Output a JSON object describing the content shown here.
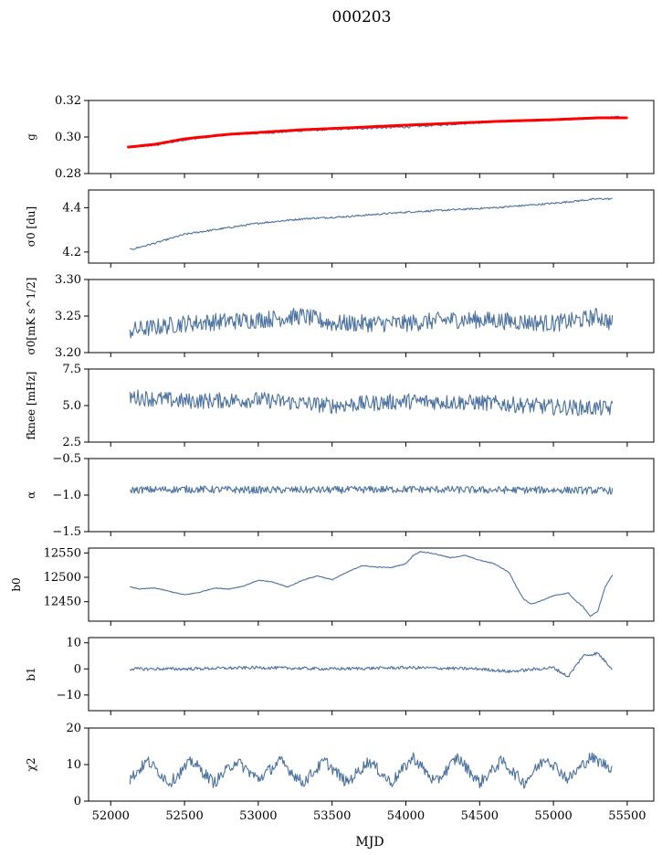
{
  "title": "000203",
  "xlabel": "MJD",
  "x_ticks": [
    52000,
    52500,
    53000,
    53500,
    54000,
    54500,
    55000,
    55500
  ],
  "chart_data": [
    {
      "type": "line",
      "ylabel": "g",
      "ylim": [
        0.28,
        0.32
      ],
      "y_ticks": [
        "0.28",
        "0.30",
        "0.32"
      ],
      "series": [
        {
          "values_x": [
            52130,
            52300,
            52500,
            52800,
            53000,
            53300,
            53600,
            54000,
            54300,
            54600,
            55000,
            55300,
            55450
          ],
          "values_y": [
            0.2945,
            0.2955,
            0.2985,
            0.3015,
            0.302,
            0.3035,
            0.3045,
            0.3055,
            0.307,
            0.3085,
            0.3095,
            0.3105,
            0.311
          ]
        },
        {
          "values_x": [
            52120,
            52300,
            52500,
            52800,
            53000,
            53300,
            53600,
            54000,
            54300,
            54600,
            55000,
            55300,
            55500
          ],
          "values_y": [
            0.2945,
            0.296,
            0.299,
            0.3015,
            0.3025,
            0.304,
            0.305,
            0.3065,
            0.3075,
            0.3085,
            0.3095,
            0.3105,
            0.3105
          ]
        }
      ]
    },
    {
      "type": "line",
      "ylabel": "σ0 [du]",
      "ylim": [
        4.15,
        4.48
      ],
      "y_ticks": [
        "4.2",
        "4.4"
      ],
      "series": [
        {
          "values_x": [
            52130,
            52300,
            52500,
            52800,
            53000,
            53300,
            53600,
            54000,
            54300,
            54600,
            55000,
            55300,
            55400
          ],
          "values_y": [
            4.21,
            4.24,
            4.28,
            4.31,
            4.33,
            4.35,
            4.36,
            4.38,
            4.39,
            4.4,
            4.42,
            4.44,
            4.44
          ]
        }
      ]
    },
    {
      "type": "line",
      "ylabel": "σ0[mK s^1/2]",
      "ylim": [
        3.2,
        3.3
      ],
      "y_ticks": [
        "3.20",
        "3.25",
        "3.30"
      ],
      "series": [
        {
          "values_x": [
            52130,
            52500,
            53000,
            53300,
            53500,
            54000,
            54300,
            54500,
            55000,
            55200,
            55300,
            55400
          ],
          "values_y": [
            3.23,
            3.24,
            3.245,
            3.25,
            3.24,
            3.24,
            3.245,
            3.245,
            3.24,
            3.245,
            3.25,
            3.24
          ]
        }
      ]
    },
    {
      "type": "line",
      "ylabel": "fknee [mHz]",
      "ylim": [
        2.5,
        7.5
      ],
      "y_ticks": [
        "2.5",
        "5.0",
        "7.5"
      ],
      "series": [
        {
          "values_x": [
            52130,
            52500,
            53000,
            53250,
            53500,
            54000,
            54500,
            55000,
            55400
          ],
          "values_y": [
            5.6,
            5.3,
            5.4,
            5.2,
            5.0,
            5.3,
            5.2,
            4.9,
            4.8
          ]
        }
      ]
    },
    {
      "type": "line",
      "ylabel": "α",
      "ylim": [
        -1.5,
        -0.5
      ],
      "y_ticks": [
        "−1.5",
        "−1.0",
        "−0.5"
      ],
      "series": [
        {
          "values_x": [
            52130,
            52500,
            53000,
            53500,
            54000,
            54500,
            55000,
            55400
          ],
          "values_y": [
            -0.93,
            -0.92,
            -0.93,
            -0.93,
            -0.92,
            -0.93,
            -0.93,
            -0.94
          ]
        }
      ]
    },
    {
      "type": "line",
      "ylabel": "b0",
      "ylim": [
        12410,
        12560
      ],
      "y_ticks": [
        "12450",
        "12500",
        "12550"
      ],
      "series": [
        {
          "values_x": [
            52130,
            52200,
            52300,
            52400,
            52500,
            52600,
            52700,
            52800,
            52900,
            53000,
            53100,
            53200,
            53300,
            53400,
            53500,
            53600,
            53700,
            53800,
            53900,
            54000,
            54050,
            54100,
            54200,
            54300,
            54400,
            54500,
            54600,
            54700,
            54750,
            54800,
            54850,
            54900,
            55000,
            55050,
            55100,
            55150,
            55200,
            55250,
            55300,
            55350,
            55400
          ],
          "values_y": [
            12480,
            12476,
            12478,
            12471,
            12464,
            12469,
            12478,
            12476,
            12482,
            12494,
            12490,
            12480,
            12494,
            12503,
            12495,
            12510,
            12524,
            12521,
            12520,
            12528,
            12545,
            12553,
            12548,
            12540,
            12545,
            12535,
            12528,
            12510,
            12480,
            12455,
            12445,
            12450,
            12462,
            12465,
            12468,
            12452,
            12440,
            12420,
            12430,
            12480,
            12505
          ]
        }
      ]
    },
    {
      "type": "line",
      "ylabel": "b1",
      "ylim": [
        -16,
        12
      ],
      "y_ticks": [
        "−10",
        "0",
        "10"
      ],
      "series": [
        {
          "values_x": [
            52130,
            52500,
            53000,
            53500,
            54000,
            54500,
            54700,
            55000,
            55100,
            55200,
            55300,
            55400
          ],
          "values_y": [
            0,
            0,
            0.5,
            0,
            0.5,
            0,
            -1,
            0.5,
            -3,
            5,
            6,
            0
          ]
        }
      ]
    },
    {
      "type": "line",
      "ylabel": "χ2",
      "ylim": [
        0,
        20
      ],
      "y_ticks": [
        "0",
        "10",
        "20"
      ],
      "series": [
        {
          "values_x": [
            52130,
            52250,
            52400,
            52550,
            52700,
            52850,
            53000,
            53150,
            53300,
            53450,
            53600,
            53750,
            53900,
            54050,
            54200,
            54350,
            54500,
            54650,
            54800,
            54950,
            55100,
            55250,
            55400
          ],
          "values_y": [
            6,
            11,
            5,
            11,
            5,
            11,
            6,
            11,
            5,
            11,
            5,
            11,
            5,
            12,
            5,
            12,
            5,
            11,
            5,
            12,
            6,
            12,
            9
          ]
        }
      ]
    }
  ]
}
